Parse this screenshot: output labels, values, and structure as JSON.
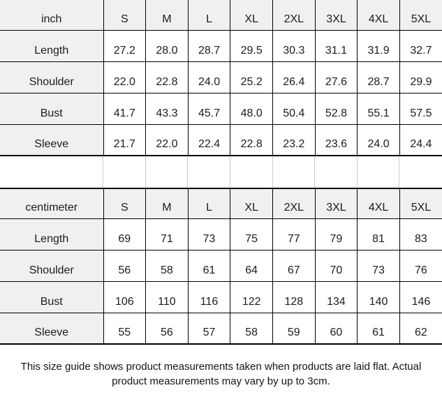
{
  "chart_data": [
    {
      "type": "table",
      "title": "inch size table",
      "columns": [
        "inch",
        "S",
        "M",
        "L",
        "XL",
        "2XL",
        "3XL",
        "4XL",
        "5XL"
      ],
      "rows": [
        {
          "label": "Length",
          "values": [
            "27.2",
            "28.0",
            "28.7",
            "29.5",
            "30.3",
            "31.1",
            "31.9",
            "32.7"
          ]
        },
        {
          "label": "Shoulder",
          "values": [
            "22.0",
            "22.8",
            "24.0",
            "25.2",
            "26.4",
            "27.6",
            "28.7",
            "29.9"
          ]
        },
        {
          "label": "Bust",
          "values": [
            "41.7",
            "43.3",
            "45.7",
            "48.0",
            "50.4",
            "52.8",
            "55.1",
            "57.5"
          ]
        },
        {
          "label": "Sleeve",
          "values": [
            "21.7",
            "22.0",
            "22.4",
            "22.8",
            "23.2",
            "23.6",
            "24.0",
            "24.4"
          ]
        }
      ]
    },
    {
      "type": "table",
      "title": "centimeter size table",
      "columns": [
        "centimeter",
        "S",
        "M",
        "L",
        "XL",
        "2XL",
        "3XL",
        "4XL",
        "5XL"
      ],
      "rows": [
        {
          "label": "Length",
          "values": [
            "69",
            "71",
            "73",
            "75",
            "77",
            "79",
            "81",
            "83"
          ]
        },
        {
          "label": "Shoulder",
          "values": [
            "56",
            "58",
            "61",
            "64",
            "67",
            "70",
            "73",
            "76"
          ]
        },
        {
          "label": "Bust",
          "values": [
            "106",
            "110",
            "116",
            "122",
            "128",
            "134",
            "140",
            "146"
          ]
        },
        {
          "label": "Sleeve",
          "values": [
            "55",
            "56",
            "57",
            "58",
            "59",
            "60",
            "61",
            "62"
          ]
        }
      ]
    }
  ],
  "footer": {
    "note": "This size guide shows product measurements taken when products are laid flat. Actual product measurements may vary by up to 3cm."
  },
  "colors": {
    "header_cell_bg": "#f0f0f0",
    "grid_border": "#000000",
    "spacer_line": "#c9cbd2",
    "text": "#1c1c1c"
  }
}
